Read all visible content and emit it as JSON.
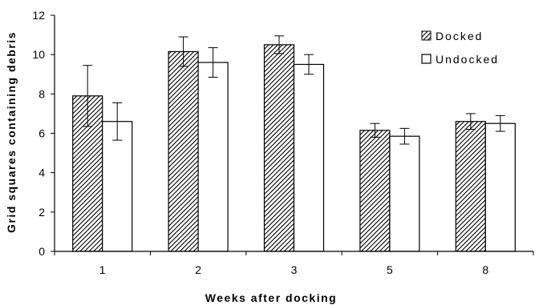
{
  "chart_data": {
    "type": "bar",
    "categories": [
      "1",
      "2",
      "3",
      "5",
      "8"
    ],
    "series": [
      {
        "name": "Docked",
        "values": [
          7.9,
          10.15,
          10.5,
          6.15,
          6.6
        ],
        "error": [
          1.55,
          0.75,
          0.45,
          0.35,
          0.4
        ],
        "fill": "hatch"
      },
      {
        "name": "Undocked",
        "values": [
          6.6,
          9.6,
          9.5,
          5.85,
          6.5
        ],
        "error": [
          0.95,
          0.75,
          0.5,
          0.4,
          0.4
        ],
        "fill": "#ffffff"
      }
    ],
    "xlabel": "Weeks after docking",
    "ylabel": "Grid squares containing debris",
    "ylim": [
      0,
      12
    ],
    "yticks": [
      "0",
      "2",
      "4",
      "6",
      "8",
      "10",
      "12"
    ],
    "grid": false,
    "legend_position": "top-right",
    "colors": {
      "axis": "#000000",
      "hatch": "#000000",
      "background": "#ffffff"
    }
  }
}
